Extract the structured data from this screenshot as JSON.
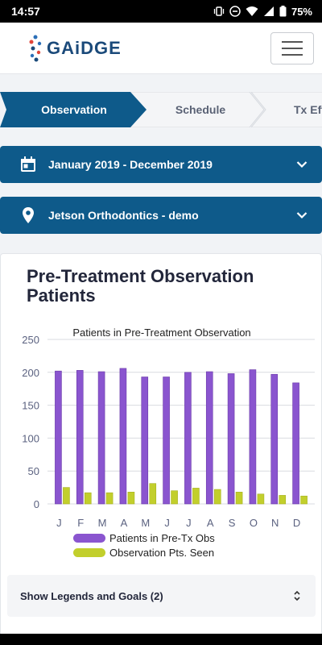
{
  "status_bar": {
    "time": "14:57",
    "battery": "75%"
  },
  "header": {
    "logo_text": "GAiDGE"
  },
  "steps": [
    {
      "label": "Observation",
      "active": true
    },
    {
      "label": "Schedule",
      "active": false
    },
    {
      "label": "Tx Eff",
      "active": false
    }
  ],
  "filters": {
    "date_range": "January 2019 - December 2019",
    "location": "Jetson Orthodontics - demo"
  },
  "card": {
    "title": "Pre-Treatment Observation Patients"
  },
  "legend_toggle": {
    "label": "Show Legends and Goals (2)"
  },
  "colors": {
    "primary": "#0e5a8a",
    "series1": "#8a55cf",
    "series2": "#c2cf2c"
  },
  "chart_data": {
    "type": "bar",
    "title": "Patients in Pre-Treatment Observation",
    "categories": [
      "J",
      "F",
      "M",
      "A",
      "M",
      "J",
      "J",
      "A",
      "S",
      "O",
      "N",
      "D"
    ],
    "series": [
      {
        "name": "Patients in Pre-Tx Obs",
        "values": [
          202,
          203,
          201,
          206,
          193,
          193,
          200,
          201,
          198,
          204,
          197,
          184
        ]
      },
      {
        "name": "Observation Pts. Seen",
        "values": [
          25,
          17,
          17,
          18,
          31,
          20,
          24,
          22,
          18,
          15,
          13,
          12
        ]
      }
    ],
    "ylim": [
      0,
      250
    ],
    "yticks": [
      0,
      50,
      100,
      150,
      200,
      250
    ],
    "grid": true,
    "legend": "bottom"
  }
}
